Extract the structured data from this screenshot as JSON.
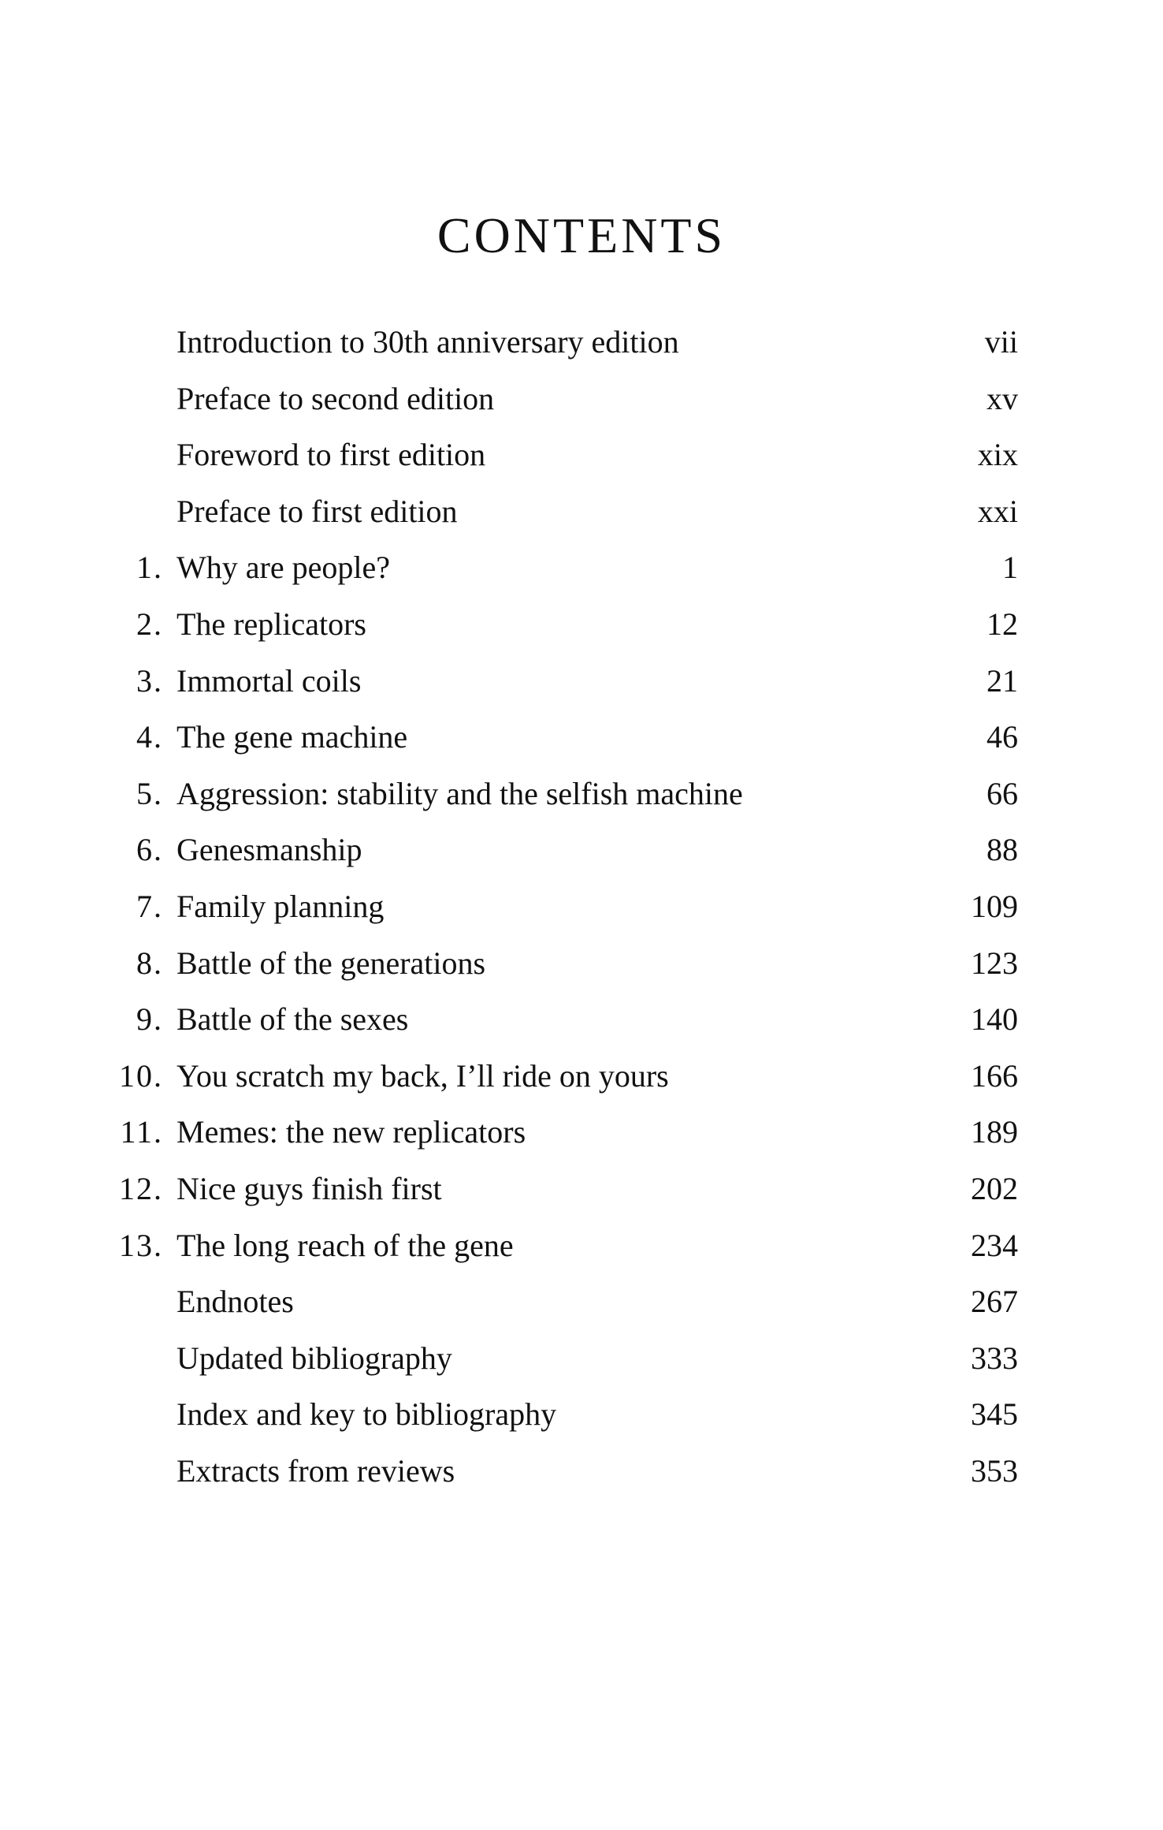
{
  "title": "CONTENTS",
  "entries": [
    {
      "number": "",
      "label": "Introduction to 30th anniversary edition",
      "page": "vii"
    },
    {
      "number": "",
      "label": "Preface to second edition",
      "page": "xv"
    },
    {
      "number": "",
      "label": "Foreword to first edition",
      "page": "xix"
    },
    {
      "number": "",
      "label": "Preface to first edition",
      "page": "xxi"
    },
    {
      "number": "1.",
      "label": "Why are people?",
      "page": "1"
    },
    {
      "number": "2.",
      "label": "The replicators",
      "page": "12"
    },
    {
      "number": "3.",
      "label": "Immortal coils",
      "page": "21"
    },
    {
      "number": "4.",
      "label": "The gene machine",
      "page": "46"
    },
    {
      "number": "5.",
      "label": "Aggression: stability and the selfish machine",
      "page": "66"
    },
    {
      "number": "6.",
      "label": "Genesmanship",
      "page": "88"
    },
    {
      "number": "7.",
      "label": "Family planning",
      "page": "109"
    },
    {
      "number": "8.",
      "label": "Battle of the generations",
      "page": "123"
    },
    {
      "number": "9.",
      "label": "Battle of the sexes",
      "page": "140"
    },
    {
      "number": "10.",
      "label": "You scratch my back, I’ll ride on yours",
      "page": "166"
    },
    {
      "number": "11.",
      "label": "Memes: the new replicators",
      "page": "189"
    },
    {
      "number": "12.",
      "label": "Nice guys finish first",
      "page": "202"
    },
    {
      "number": "13.",
      "label": "The long reach of the gene",
      "page": "234"
    },
    {
      "number": "",
      "label": "Endnotes",
      "page": "267"
    },
    {
      "number": "",
      "label": "Updated bibliography",
      "page": "333"
    },
    {
      "number": "",
      "label": "Index and key to bibliography",
      "page": "345"
    },
    {
      "number": "",
      "label": "Extracts from reviews",
      "page": "353"
    }
  ]
}
